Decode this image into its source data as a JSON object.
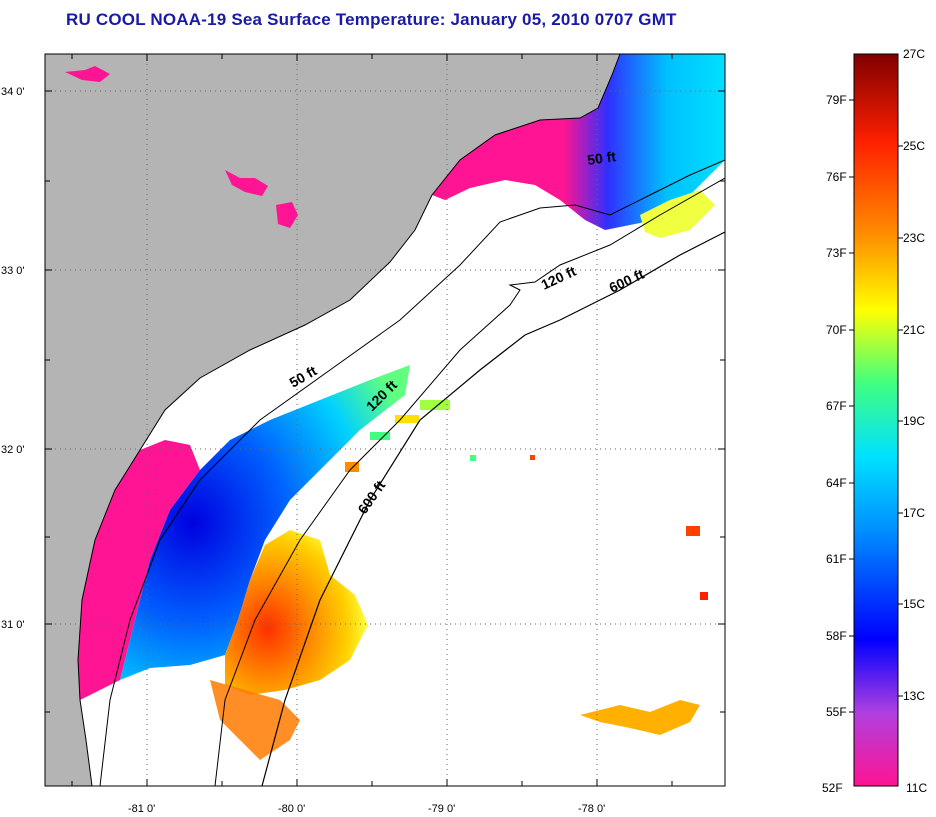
{
  "title": "RU COOL  NOAA-19  Sea Surface Temperature:  January 05, 2010 0707 GMT",
  "map": {
    "lat_labels": [
      "34 0'",
      "33 0'",
      "32 0'",
      "31 0'"
    ],
    "lon_labels": [
      "-81 0'",
      "-80 0'",
      "-79 0'",
      "-78 0'"
    ],
    "contours": [
      "50 ft",
      "120 ft",
      "600 ft",
      "50 ft",
      "120 ft",
      "600 ft"
    ],
    "land_color": "#b4b4b4"
  },
  "colorbar": {
    "fahrenheit": [
      "79F",
      "76F",
      "73F",
      "70F",
      "67F",
      "64F",
      "61F",
      "58F",
      "55F",
      "52F"
    ],
    "celsius": [
      "27C",
      "25C",
      "23C",
      "21C",
      "19C",
      "17C",
      "15C",
      "13C",
      "11C"
    ],
    "colors": [
      "#ff1493",
      "#b040e0",
      "#0000ff",
      "#0090ff",
      "#00e0ff",
      "#40ff80",
      "#ffff00",
      "#ff9000",
      "#ff2000",
      "#800000"
    ]
  }
}
